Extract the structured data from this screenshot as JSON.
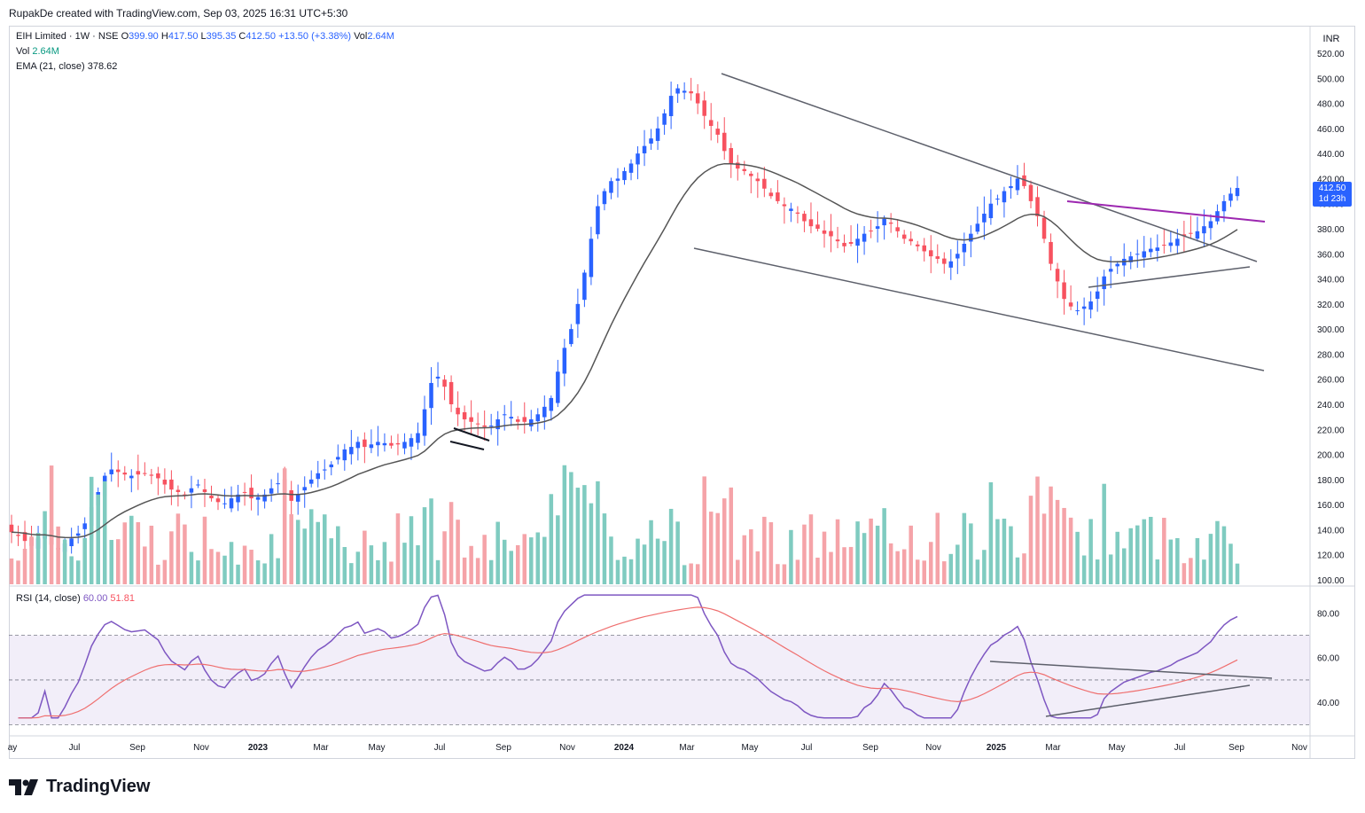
{
  "header": {
    "credit": "RupakDe created with TradingView.com, Sep 03, 2025 16:31 UTC+5:30"
  },
  "legend": {
    "symbol": "EIH Limited · 1W · NSE",
    "open_label": "O",
    "open": "399.90",
    "high_label": "H",
    "high": "417.50",
    "low_label": "L",
    "low": "395.35",
    "close_label": "C",
    "close": "412.50",
    "change": "+13.50 (+3.38%)",
    "vol_label": "Vol",
    "vol": "2.64M",
    "vol_row_label": "Vol",
    "vol_row_value": "2.64M",
    "ema_label": "EMA (21, close)",
    "ema_value": "378.62",
    "rsi_label": "RSI (14, close)",
    "rsi_value": "60.00",
    "rsi_ma_value": "51.81"
  },
  "currency": "INR",
  "last_price_tag": {
    "price": "412.50",
    "countdown": "1d 23h"
  },
  "branding": {
    "logo_text": "TradingView",
    "logo_icon": "tradingview-logo-icon"
  },
  "colors": {
    "up": "#2962ff",
    "down": "#f7525f",
    "vol_up": "#7fcbc0",
    "vol_down": "#f5a3a8",
    "ema": "#555555",
    "rsi": "#7e57c2",
    "rsi_ma": "#ef6f6f",
    "trend_line": "#5d606b",
    "breakout_line": "#9c27b0"
  },
  "chart_data": [
    {
      "type": "candlestick",
      "title": "EIH Limited · 1W · NSE",
      "y_axis_ticks": [
        "520.00",
        "500.00",
        "480.00",
        "460.00",
        "440.00",
        "420.00",
        "400.00",
        "380.00",
        "360.00",
        "340.00",
        "320.00",
        "300.00",
        "280.00",
        "260.00",
        "240.00",
        "220.00",
        "200.00",
        "180.00",
        "160.00",
        "140.00",
        "120.00",
        "100.00"
      ],
      "y_scale": {
        "min": 100,
        "max": 520
      },
      "x_axis_ticks": [
        "ay",
        "Jul",
        "Sep",
        "Nov",
        "2023",
        "Mar",
        "May",
        "Jul",
        "Sep",
        "Nov",
        "2024",
        "Mar",
        "May",
        "Jul",
        "Sep",
        "Nov",
        "2025",
        "Mar",
        "May",
        "Jul",
        "Sep",
        "Nov"
      ],
      "series_close": [
        138,
        135,
        131,
        127,
        133,
        136,
        128,
        124,
        129,
        133,
        137,
        145,
        158,
        170,
        183,
        188,
        186,
        184,
        183,
        184,
        185,
        183,
        181,
        176,
        172,
        170,
        168,
        173,
        176,
        170,
        165,
        162,
        161,
        165,
        168,
        170,
        165,
        166,
        168,
        173,
        177,
        170,
        163,
        168,
        174,
        180,
        185,
        188,
        192,
        198,
        204,
        206,
        210,
        206,
        208,
        210,
        209,
        207,
        208,
        210,
        213,
        217,
        236,
        257,
        262,
        254,
        240,
        232,
        228,
        226,
        224,
        222,
        223,
        228,
        232,
        230,
        226,
        226,
        228,
        232,
        238,
        245,
        266,
        285,
        300,
        320,
        345,
        372,
        398,
        410,
        418,
        420,
        426,
        432,
        440,
        446,
        452,
        460,
        472,
        486,
        492,
        490,
        488,
        480,
        470,
        462,
        455,
        442,
        432,
        428,
        426,
        422,
        418,
        412,
        406,
        402,
        398,
        396,
        392,
        386,
        382,
        380,
        376,
        374,
        370,
        366,
        368,
        372,
        376,
        378,
        382,
        388,
        384,
        378,
        372,
        370,
        366,
        362,
        358,
        356,
        352,
        354,
        360,
        368,
        376,
        384,
        392,
        400,
        404,
        410,
        414,
        420,
        414,
        402,
        390,
        372,
        352,
        338,
        324,
        318,
        315,
        318,
        322,
        330,
        342,
        348,
        352,
        356,
        358,
        360,
        362,
        364,
        365,
        367,
        369,
        372,
        374,
        376,
        378,
        382,
        386,
        394,
        402,
        408,
        412.5
      ],
      "ema21": {
        "name": "EMA (21, close)",
        "last": 378.62
      },
      "volume_label": "Vol 2.64M",
      "annotations": {
        "descending_channel": true,
        "symmetrical_triangle": true,
        "breakout_line": true
      }
    },
    {
      "type": "line",
      "title": "RSI (14, close)",
      "y_axis_ticks": [
        "80.00",
        "60.00",
        "40.00"
      ],
      "y_scale": {
        "min": 25,
        "max": 92
      },
      "bands": [
        30,
        50,
        70
      ],
      "series": [
        {
          "name": "RSI",
          "last": 60.0
        },
        {
          "name": "RSI MA",
          "last": 51.81
        }
      ]
    }
  ]
}
